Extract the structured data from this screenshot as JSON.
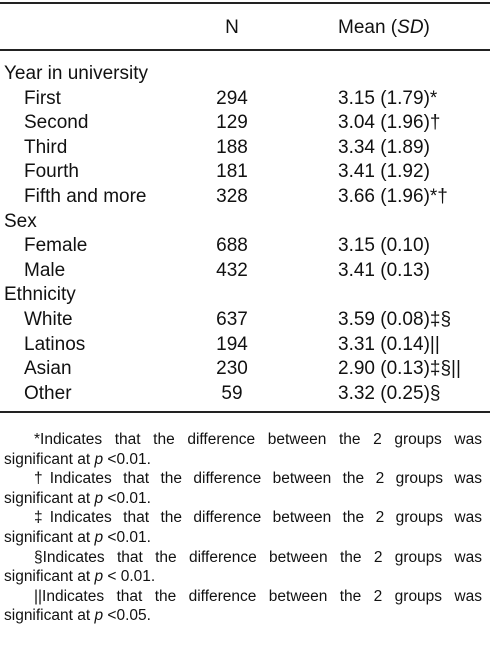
{
  "header": {
    "col1": "N",
    "col2_prefix": "Mean (",
    "col2_italic": "SD",
    "col2_suffix": ")"
  },
  "groups": [
    {
      "label": "Year in university",
      "rows": [
        [
          "First",
          "294",
          "3.15 (1.79)*"
        ],
        [
          "Second",
          "129",
          "3.04 (1.96)†"
        ],
        [
          "Third",
          "188",
          "3.34 (1.89)"
        ],
        [
          "Fourth",
          "181",
          "3.41 (1.92)"
        ],
        [
          "Fifth and more",
          "328",
          "3.66 (1.96)*†"
        ]
      ]
    },
    {
      "label": "Sex",
      "rows": [
        [
          "Female",
          "688",
          "3.15 (0.10)"
        ],
        [
          "Male",
          "432",
          "3.41 (0.13)"
        ]
      ]
    },
    {
      "label": "Ethnicity",
      "rows": [
        [
          "White",
          "637",
          "3.59 (0.08)‡§"
        ],
        [
          "Latinos",
          "194",
          "3.31 (0.14)||"
        ],
        [
          "Asian",
          "230",
          "2.90 (0.13)‡§||"
        ],
        [
          "Other",
          "59",
          "3.32 (0.25)§"
        ]
      ]
    }
  ],
  "footnotes": [
    {
      "text": "*Indicates that the difference between the 2 groups was significant at ",
      "italic": "p",
      "after": " <0.01."
    },
    {
      "text": "†Indicates that the difference between the 2 groups was significant at ",
      "italic": "p",
      "after": " <0.01."
    },
    {
      "text": "‡Indicates that the difference between the 2 groups was significant at ",
      "italic": "p",
      "after": " <0.01."
    },
    {
      "text": "§Indicates that the difference between the 2 groups was significant at ",
      "italic": "p",
      "after": " < 0.01."
    },
    {
      "text": "||Indicates that the difference between the 2 groups was significant at ",
      "italic": "p",
      "after": " <0.05."
    }
  ]
}
